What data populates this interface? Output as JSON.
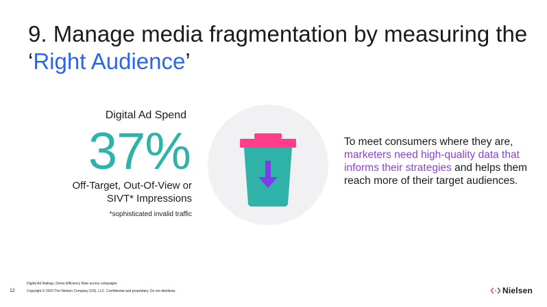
{
  "title": {
    "prefix": "9. Manage media fragmentation by measuring the ‘",
    "highlight": "Right Audience",
    "suffix": "’"
  },
  "stat": {
    "label": "Digital Ad Spend",
    "value": "37%",
    "description_line1": "Off-Target, Out-Of-View or",
    "description_line2": "SIVT* Impressions",
    "footnote": "*sophisticated invalid traffic"
  },
  "icon": {
    "name": "trash-bin-down-arrow-icon"
  },
  "side_text": {
    "before": "To meet consumers where they are, ",
    "highlight": "marketers need high-quality data that informs their strategies",
    "after": " and helps them reach more of their target audiences."
  },
  "footer": {
    "source": "Digital Ad Ratings, Demo Efficiency Rate across campaigns",
    "page_number": "12",
    "copyright": "Copyright © 2023 The Nielsen Company (US), LLC. Confidential and proprietary. Do not distribute.",
    "logo_text": "Nielsen"
  },
  "colors": {
    "title_accent": "#2a66e8",
    "stat_value": "#2fb3a8",
    "side_highlight": "#8a3fe0",
    "bin_body": "#2fb3a8",
    "bin_lid": "#ff3d8b",
    "arrow": "#7a3fe6",
    "circle_bg": "#f1f1f3"
  }
}
